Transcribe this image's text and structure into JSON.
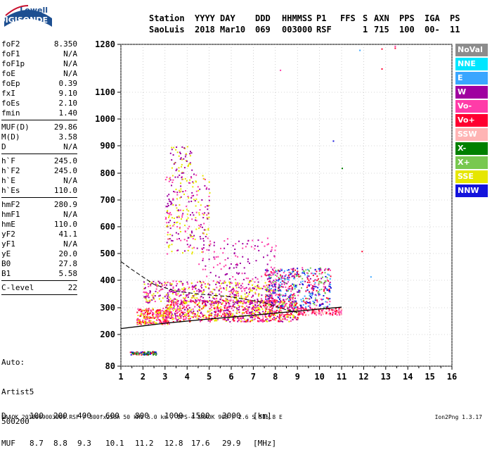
{
  "logo": {
    "line1": "Lowell",
    "line2": "DIGISONDE"
  },
  "header": {
    "row1": [
      {
        "text": "Station",
        "col": 0
      },
      {
        "text": "YYYY",
        "col": 1
      },
      {
        "text": "DAY",
        "col": 2
      },
      {
        "text": "DDD",
        "col": 3
      },
      {
        "text": "HHMMSS",
        "col": 4
      },
      {
        "text": "P1",
        "col": 5
      },
      {
        "text": "FFS",
        "col": 6
      },
      {
        "text": "S",
        "col": 7
      },
      {
        "text": "AXN",
        "col": 8
      },
      {
        "text": "PPS",
        "col": 9
      },
      {
        "text": "IGA",
        "col": 10
      },
      {
        "text": "PS",
        "col": 11
      }
    ],
    "row2": [
      {
        "text": "SaoLuis",
        "col": 0
      },
      {
        "text": "2018",
        "col": 1
      },
      {
        "text": "Mar10",
        "col": 2
      },
      {
        "text": "069",
        "col": 3
      },
      {
        "text": "003000",
        "col": 4
      },
      {
        "text": "RSF",
        "col": 5
      },
      {
        "text": "1",
        "col": 7
      },
      {
        "text": "715",
        "col": 8
      },
      {
        "text": "100",
        "col": 9
      },
      {
        "text": "00-",
        "col": 10
      },
      {
        "text": "11",
        "col": 11
      }
    ]
  },
  "params_groups": [
    [
      {
        "k": "foF2",
        "v": "8.350"
      },
      {
        "k": "foF1",
        "v": "N/A"
      },
      {
        "k": "foF1p",
        "v": "N/A"
      },
      {
        "k": "foE",
        "v": "N/A"
      },
      {
        "k": "foEp",
        "v": "0.39"
      },
      {
        "k": "fxI",
        "v": "9.10"
      },
      {
        "k": "foEs",
        "v": "2.10"
      },
      {
        "k": "fmin",
        "v": "1.40"
      }
    ],
    [
      {
        "k": "MUF(D)",
        "v": "29.86"
      },
      {
        "k": "M(D)",
        "v": "3.58"
      },
      {
        "k": "D",
        "v": "N/A"
      }
    ],
    [
      {
        "k": "h`F",
        "v": "245.0"
      },
      {
        "k": "h`F2",
        "v": "245.0"
      },
      {
        "k": "h`E",
        "v": "N/A"
      },
      {
        "k": "h`Es",
        "v": "110.0"
      }
    ],
    [
      {
        "k": "hmF2",
        "v": "280.9"
      },
      {
        "k": "hmF1",
        "v": "N/A"
      },
      {
        "k": "hmE",
        "v": "110.0"
      },
      {
        "k": "yF2",
        "v": "41.1"
      },
      {
        "k": "yF1",
        "v": "N/A"
      },
      {
        "k": "yE",
        "v": "20.0"
      },
      {
        "k": "B0",
        "v": "27.8"
      },
      {
        "k": "B1",
        "v": "5.58"
      }
    ],
    [
      {
        "k": "C-level",
        "v": "22"
      }
    ]
  ],
  "artist": [
    "Auto:",
    "Artist5",
    "500200"
  ],
  "conversion": {
    "d_label": "D",
    "d_values": [
      "100",
      "200",
      "400",
      "600",
      "800",
      "1000",
      "1500",
      "3000"
    ],
    "d_unit": "[km]",
    "muf_label": "MUF",
    "muf_values": [
      "8.7",
      "8.8",
      "9.3",
      "10.1",
      "11.2",
      "12.8",
      "17.6",
      "29.9"
    ],
    "muf_unit": "[MHz]"
  },
  "footer": {
    "left": "SAAOK_2018069003000.RSF / 300fx256h 50 kHz 5.0 km / DPS-4 SAAOK 903 / 2.6 S 315.8 E",
    "right": "Ion2Png 1.3.17"
  },
  "legend": [
    {
      "label": "NoVal",
      "color": "#8c8c8c"
    },
    {
      "label": "NNE",
      "color": "#00e6ff"
    },
    {
      "label": "E",
      "color": "#3aa6ff"
    },
    {
      "label": "W",
      "color": "#a000a0"
    },
    {
      "label": "Vo-",
      "color": "#ff3ca8"
    },
    {
      "label": "Vo+",
      "color": "#ff0030"
    },
    {
      "label": "SSW",
      "color": "#ffb4b4"
    },
    {
      "label": "X-",
      "color": "#008000"
    },
    {
      "label": "X+",
      "color": "#78c850"
    },
    {
      "label": "SSE",
      "color": "#e6e600"
    },
    {
      "label": "NNW",
      "color": "#1414dc"
    }
  ],
  "chart_data": {
    "type": "scatter",
    "xlim": [
      1,
      16
    ],
    "ylim": [
      80,
      1280
    ],
    "xticks": [
      1,
      2,
      3,
      4,
      5,
      6,
      7,
      8,
      9,
      10,
      11,
      12,
      13,
      14,
      15,
      16
    ],
    "yticks": [
      80,
      200,
      300,
      400,
      500,
      600,
      700,
      800,
      900,
      1000,
      1100,
      1280
    ],
    "grid": "dotted",
    "legend_position": "right",
    "ionogram_trace": [
      {
        "f": 1.0,
        "h": 222
      },
      {
        "f": 2.0,
        "h": 232
      },
      {
        "f": 3.0,
        "h": 242
      },
      {
        "f": 4.0,
        "h": 250
      },
      {
        "f": 5.0,
        "h": 258
      },
      {
        "f": 6.0,
        "h": 265
      },
      {
        "f": 7.0,
        "h": 272
      },
      {
        "f": 8.0,
        "h": 280
      },
      {
        "f": 9.0,
        "h": 287
      },
      {
        "f": 10.0,
        "h": 295
      },
      {
        "f": 11.0,
        "h": 302
      }
    ],
    "profile_line": [
      {
        "f": 1.0,
        "h": 470
      },
      {
        "f": 1.5,
        "h": 440
      },
      {
        "f": 2.5,
        "h": 385
      },
      {
        "f": 3.5,
        "h": 360
      },
      {
        "f": 4.5,
        "h": 350
      },
      {
        "f": 6.0,
        "h": 340
      },
      {
        "f": 7.5,
        "h": 318
      },
      {
        "f": 8.5,
        "h": 292
      },
      {
        "f": 9.0,
        "h": 282
      }
    ],
    "clusters": [
      {
        "f": [
          1.7,
          3.2
        ],
        "h": [
          240,
          300
        ],
        "colors": [
          "#ff0030",
          "#ff3ca8",
          "#e6e600"
        ],
        "n": 260
      },
      {
        "f": [
          3.0,
          9.0
        ],
        "h": [
          250,
          330
        ],
        "colors": [
          "#ff0030",
          "#ff3ca8",
          "#a000a0",
          "#e6e600"
        ],
        "n": 900
      },
      {
        "f": [
          2.0,
          8.0
        ],
        "h": [
          320,
          400
        ],
        "colors": [
          "#e6e600",
          "#a000a0",
          "#ff3ca8"
        ],
        "n": 500
      },
      {
        "f": [
          3.0,
          5.0
        ],
        "h": [
          500,
          800
        ],
        "colors": [
          "#a000a0",
          "#ff3ca8",
          "#e6e600"
        ],
        "n": 260
      },
      {
        "f": [
          3.2,
          4.2
        ],
        "h": [
          800,
          900
        ],
        "colors": [
          "#e6e600",
          "#a000a0"
        ],
        "n": 50
      },
      {
        "f": [
          7.5,
          10.5
        ],
        "h": [
          300,
          450
        ],
        "colors": [
          "#a000a0",
          "#1414dc",
          "#ff0030",
          "#ff3ca8",
          "#78c850",
          "#3aa6ff"
        ],
        "n": 520
      },
      {
        "f": [
          1.4,
          2.6
        ],
        "h": [
          125,
          137
        ],
        "colors": [
          "#78c850",
          "#008000",
          "#ff0030",
          "#1414dc"
        ],
        "n": 80
      },
      {
        "f": [
          4.5,
          8.0
        ],
        "h": [
          400,
          560
        ],
        "colors": [
          "#a000a0",
          "#ff3ca8"
        ],
        "n": 120
      },
      {
        "f": [
          9.0,
          11.0
        ],
        "h": [
          275,
          300
        ],
        "colors": [
          "#ff3ca8",
          "#ffb4b4",
          "#ff0030"
        ],
        "n": 120
      }
    ],
    "stray_points": [
      {
        "f": 12.8,
        "h": 1265,
        "c": "#ff0030"
      },
      {
        "f": 13.4,
        "h": 1275,
        "c": "#ff3ca8"
      },
      {
        "f": 13.4,
        "h": 1268,
        "c": "#ff0030"
      },
      {
        "f": 12.8,
        "h": 1190,
        "c": "#ff0030"
      },
      {
        "f": 11.8,
        "h": 1260,
        "c": "#3aa6ff"
      },
      {
        "f": 8.2,
        "h": 1185,
        "c": "#ff3ca8"
      },
      {
        "f": 10.6,
        "h": 920,
        "c": "#1414dc"
      },
      {
        "f": 11.0,
        "h": 820,
        "c": "#008000"
      },
      {
        "f": 11.9,
        "h": 510,
        "c": "#ff0030"
      },
      {
        "f": 12.3,
        "h": 415,
        "c": "#3aa6ff"
      }
    ]
  }
}
